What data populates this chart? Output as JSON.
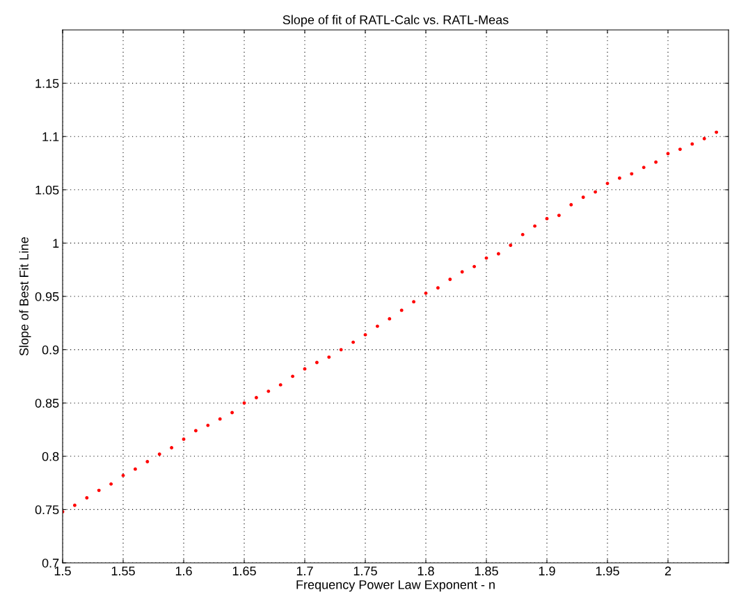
{
  "chart_data": {
    "type": "scatter",
    "title": "Slope of fit of RATL-Calc vs. RATL-Meas",
    "xlabel": "Frequency Power Law Exponent - n",
    "ylabel": "Slope of Best Fit Line",
    "x": [
      1.5,
      1.51,
      1.52,
      1.53,
      1.54,
      1.55,
      1.56,
      1.57,
      1.58,
      1.59,
      1.6,
      1.61,
      1.62,
      1.63,
      1.64,
      1.65,
      1.66,
      1.67,
      1.68,
      1.69,
      1.7,
      1.71,
      1.72,
      1.73,
      1.74,
      1.75,
      1.76,
      1.77,
      1.78,
      1.79,
      1.8,
      1.81,
      1.82,
      1.83,
      1.84,
      1.85,
      1.86,
      1.87,
      1.88,
      1.89,
      1.9,
      1.91,
      1.92,
      1.93,
      1.94,
      1.95,
      1.96,
      1.97,
      1.98,
      1.99,
      2.0,
      2.01,
      2.02,
      2.03,
      2.04
    ],
    "series": [
      {
        "color": "#ff0000",
        "values": [
          0.748,
          0.754,
          0.761,
          0.768,
          0.774,
          0.782,
          0.788,
          0.795,
          0.802,
          0.808,
          0.816,
          0.824,
          0.829,
          0.835,
          0.841,
          0.85,
          0.855,
          0.861,
          0.867,
          0.875,
          0.882,
          0.888,
          0.893,
          0.9,
          0.907,
          0.914,
          0.922,
          0.929,
          0.937,
          0.945,
          0.953,
          0.958,
          0.966,
          0.973,
          0.978,
          0.986,
          0.99,
          0.998,
          1.008,
          1.016,
          1.023,
          1.026,
          1.036,
          1.043,
          1.048,
          1.056,
          1.061,
          1.065,
          1.071,
          1.076,
          1.084,
          1.088,
          1.093,
          1.098,
          1.104
        ]
      }
    ],
    "xlim": [
      1.5,
      2.05
    ],
    "ylim": [
      0.7,
      1.2
    ],
    "xticks": [
      1.5,
      1.55,
      1.6,
      1.65,
      1.7,
      1.75,
      1.8,
      1.85,
      1.9,
      1.95,
      2
    ],
    "yticks": [
      0.7,
      0.75,
      0.8,
      0.85,
      0.9,
      0.95,
      1,
      1.05,
      1.1,
      1.15
    ],
    "grid": true,
    "marker": "circle"
  }
}
